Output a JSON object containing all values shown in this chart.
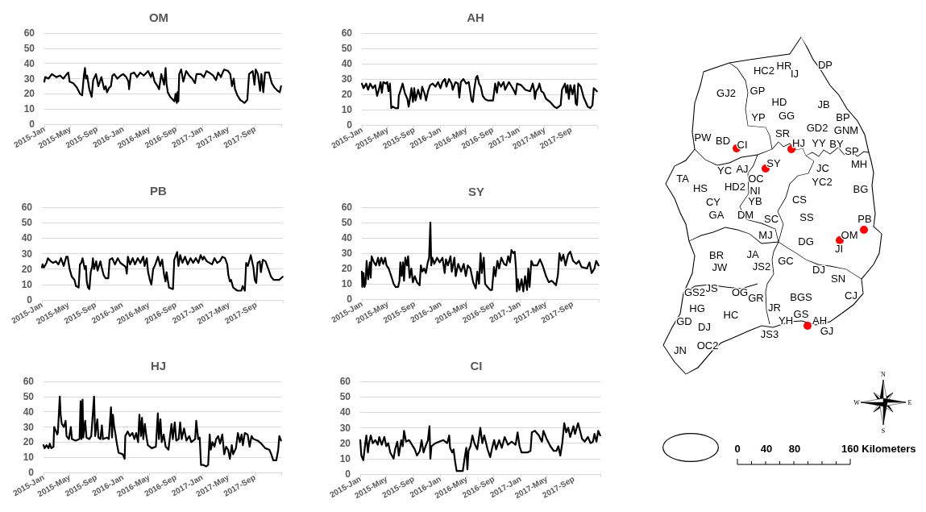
{
  "chart_data": [
    {
      "type": "line",
      "title": "OM",
      "xlim": [
        "2015-01-01",
        "2018-01-01"
      ],
      "xticks": [
        {
          "value": "2015-01-01",
          "label": "2015-Jan"
        },
        {
          "value": "2015-05-01",
          "label": "2015-May"
        },
        {
          "value": "2015-09-01",
          "label": "2015-Sep"
        },
        {
          "value": "2016-01-01",
          "label": "2016-Jan"
        },
        {
          "value": "2016-05-01",
          "label": "2016-May"
        },
        {
          "value": "2016-09-01",
          "label": "2016-Sep"
        },
        {
          "value": "2017-01-01",
          "label": "2017-Jan"
        },
        {
          "value": "2017-05-01",
          "label": "2017-May"
        },
        {
          "value": "2017-09-01",
          "label": "2017-Sep"
        },
        {
          "value": "2018-01-01",
          "label": null
        }
      ],
      "ylim": [
        0,
        60
      ],
      "yticks": [
        0,
        10,
        20,
        30,
        40,
        50,
        60
      ],
      "grid": "y",
      "x": [
        "2015-01-01",
        "2015-01-05",
        "2015-01-20",
        "2015-02-05",
        "2015-02-25",
        "2015-03-15",
        "2015-03-30",
        "2015-04-15",
        "2015-04-22",
        "2015-04-28",
        "2015-05-15",
        "2015-06-01",
        "2015-06-15",
        "2015-06-25",
        "2015-07-03",
        "2015-07-08",
        "2015-07-12",
        "2015-07-18",
        "2015-07-28",
        "2015-08-08",
        "2015-08-15",
        "2015-08-28",
        "2015-09-08",
        "2015-09-22",
        "2015-10-05",
        "2015-10-12",
        "2015-10-18",
        "2015-10-28",
        "2015-11-05",
        "2015-11-12",
        "2015-11-20",
        "2015-12-05",
        "2015-12-20",
        "2016-01-01",
        "2016-01-15",
        "2016-01-25",
        "2016-01-28",
        "2016-02-05",
        "2016-02-20",
        "2016-03-05",
        "2016-03-20",
        "2016-04-05",
        "2016-04-25",
        "2016-05-08",
        "2016-05-15",
        "2016-05-25",
        "2016-06-08",
        "2016-06-15",
        "2016-06-25",
        "2016-07-08",
        "2016-07-15",
        "2016-07-19",
        "2016-07-25",
        "2016-08-05",
        "2016-08-25",
        "2016-08-30",
        "2016-09-05",
        "2016-09-08",
        "2016-09-12",
        "2016-09-16",
        "2016-09-25",
        "2016-10-05",
        "2016-10-18",
        "2016-11-01",
        "2016-11-15",
        "2016-11-28",
        "2016-12-05",
        "2016-12-25",
        "2017-01-08",
        "2017-01-20",
        "2017-02-01",
        "2017-02-20",
        "2017-03-05",
        "2017-03-15",
        "2017-03-28",
        "2017-04-05",
        "2017-04-12",
        "2017-04-30",
        "2017-05-10",
        "2017-05-18",
        "2017-05-26",
        "2017-06-01",
        "2017-06-12",
        "2017-06-25",
        "2017-07-15",
        "2017-07-28",
        "2017-08-05",
        "2017-08-22",
        "2017-08-30",
        "2017-09-05",
        "2017-09-15",
        "2017-09-25",
        "2017-10-01",
        "2017-10-10",
        "2017-10-18",
        "2017-11-05",
        "2017-11-18",
        "2017-12-01",
        "2017-12-15",
        "2017-12-25",
        "2017-12-31"
      ],
      "series": [
        {
          "color": "#000000",
          "values": [
            28,
            31,
            30,
            33,
            31,
            32,
            30,
            33,
            34,
            28,
            27,
            24,
            20,
            19,
            32,
            37,
            30,
            32,
            23,
            18,
            29,
            33,
            25,
            31,
            23,
            25,
            21,
            24,
            25,
            32,
            33,
            30,
            32,
            33,
            31,
            28,
            23,
            33,
            34,
            31,
            34,
            32,
            35,
            31,
            34,
            28,
            25,
            23,
            33,
            26,
            37,
            27,
            21,
            18,
            15,
            20,
            14,
            21,
            15,
            33,
            36,
            28,
            35,
            32,
            30,
            27,
            33,
            33,
            31,
            35,
            34,
            32,
            29,
            34,
            31,
            34,
            36,
            35,
            33,
            25,
            30,
            23,
            19,
            16,
            14,
            16,
            33,
            35,
            26,
            36,
            33,
            22,
            33,
            21,
            34,
            34,
            27,
            24,
            22,
            21,
            25
          ]
        }
      ]
    },
    {
      "type": "line",
      "title": "AH",
      "xlim": [
        "2015-01-01",
        "2018-01-01"
      ],
      "xticks": [
        {
          "value": "2015-01-01",
          "label": "2015-Jan"
        },
        {
          "value": "2015-05-01",
          "label": "2015-May"
        },
        {
          "value": "2015-09-01",
          "label": "2015-Sep"
        },
        {
          "value": "2016-01-01",
          "label": "2016-Jan"
        },
        {
          "value": "2016-05-01",
          "label": "2016-May"
        },
        {
          "value": "2016-09-01",
          "label": "2016-Sep"
        },
        {
          "value": "2017-01-01",
          "label": "2017-Jan"
        },
        {
          "value": "2017-05-01",
          "label": "2017-May"
        },
        {
          "value": "2017-09-01",
          "label": "2017-Sep"
        },
        {
          "value": "2018-01-01",
          "label": null
        }
      ],
      "ylim": [
        0,
        60
      ],
      "yticks": [
        0,
        10,
        20,
        30,
        40,
        50,
        60
      ],
      "grid": "y",
      "x": [
        "2015-01-01",
        "2015-01-09",
        "2015-01-21",
        "2015-01-30",
        "2015-02-09",
        "2015-02-21",
        "2015-03-04",
        "2015-03-13",
        "2015-03-23",
        "2015-03-29",
        "2015-04-04",
        "2015-04-11",
        "2015-04-23",
        "2015-04-29",
        "2015-05-05",
        "2015-05-12",
        "2015-05-18",
        "2015-05-25",
        "2015-06-06",
        "2015-06-19",
        "2015-06-22",
        "2015-07-01",
        "2015-07-10",
        "2015-07-20",
        "2015-08-01",
        "2015-08-07",
        "2015-08-14",
        "2015-08-20",
        "2015-08-27",
        "2015-09-02",
        "2015-09-08",
        "2015-09-20",
        "2015-10-02",
        "2015-10-09",
        "2015-10-21",
        "2015-10-27",
        "2015-11-05",
        "2015-11-15",
        "2015-11-27",
        "2015-12-10",
        "2015-12-22",
        "2016-01-02",
        "2016-01-11",
        "2016-01-23",
        "2016-01-30",
        "2016-02-11",
        "2016-02-23",
        "2016-02-28",
        "2016-03-12",
        "2016-03-24",
        "2016-03-30",
        "2016-04-06",
        "2016-04-18",
        "2016-05-01",
        "2016-05-13",
        "2016-05-26",
        "2016-06-01",
        "2016-06-07",
        "2016-06-16",
        "2016-06-22",
        "2016-06-30",
        "2016-07-08",
        "2016-07-17",
        "2016-07-27",
        "2016-08-09",
        "2016-09-03",
        "2016-09-13",
        "2016-09-21",
        "2016-09-28",
        "2016-10-10",
        "2016-10-22",
        "2016-10-29",
        "2016-11-16",
        "2016-11-29",
        "2016-12-11",
        "2016-12-17",
        "2016-12-24",
        "2017-01-12",
        "2017-01-31",
        "2017-02-23",
        "2017-03-07",
        "2017-03-13",
        "2017-03-17",
        "2017-03-23",
        "2017-04-01",
        "2017-04-07",
        "2017-04-16",
        "2017-04-26",
        "2017-05-08",
        "2017-05-27",
        "2017-06-15",
        "2017-06-27",
        "2017-07-15",
        "2017-07-21",
        "2017-08-04",
        "2017-08-10",
        "2017-08-16",
        "2017-08-22",
        "2017-08-29",
        "2017-09-08",
        "2017-09-17",
        "2017-09-23",
        "2017-09-29",
        "2017-10-05",
        "2017-10-17",
        "2017-10-30",
        "2017-11-18",
        "2017-11-30",
        "2017-12-10",
        "2017-12-16",
        "2017-12-31"
      ],
      "series": [
        {
          "color": "#000000",
          "values": [
            27,
            24,
            27,
            23,
            27,
            24,
            26,
            19,
            24,
            28,
            21,
            28,
            27,
            28,
            22,
            27,
            11,
            12,
            11,
            11,
            19,
            23,
            27,
            21,
            17,
            12,
            18,
            24,
            15,
            24,
            16,
            23,
            17,
            25,
            20,
            16,
            22,
            26,
            27,
            25,
            28,
            24,
            28,
            30,
            25,
            30,
            27,
            23,
            28,
            27,
            18,
            28,
            30,
            27,
            28,
            16,
            15,
            23,
            31,
            32,
            27,
            25,
            19,
            17,
            16,
            16,
            27,
            21,
            28,
            25,
            28,
            23,
            28,
            25,
            22,
            20,
            27,
            26,
            23,
            22,
            27,
            23,
            17,
            22,
            24,
            27,
            22,
            21,
            17,
            15,
            12,
            11,
            13,
            23,
            27,
            21,
            26,
            17,
            26,
            20,
            26,
            14,
            13,
            27,
            25,
            18,
            12,
            11,
            13,
            24,
            22
          ]
        }
      ]
    },
    {
      "type": "line",
      "title": "PB",
      "xlim": [
        "2015-01-01",
        "2018-01-01"
      ],
      "xticks": [
        {
          "value": "2015-01-01",
          "label": "2015-Jan"
        },
        {
          "value": "2015-05-01",
          "label": "2015-May"
        },
        {
          "value": "2015-09-01",
          "label": "2015-Sep"
        },
        {
          "value": "2016-01-01",
          "label": "2016-Jan"
        },
        {
          "value": "2016-05-01",
          "label": "2016-May"
        },
        {
          "value": "2016-09-01",
          "label": "2016-Sep"
        },
        {
          "value": "2017-01-01",
          "label": "2017-Jan"
        },
        {
          "value": "2017-05-01",
          "label": "2017-May"
        },
        {
          "value": "2017-09-01",
          "label": "2017-Sep"
        },
        {
          "value": "2018-01-01",
          "label": null
        }
      ],
      "ylim": [
        0,
        60
      ],
      "yticks": [
        0,
        10,
        20,
        30,
        40,
        50,
        60
      ],
      "grid": "y",
      "x": [
        "2015-01-01",
        "2015-01-04",
        "2015-01-10",
        "2015-01-22",
        "2015-01-28",
        "2015-02-10",
        "2015-02-21",
        "2015-03-05",
        "2015-03-17",
        "2015-03-29",
        "2015-04-10",
        "2015-04-22",
        "2015-04-28",
        "2015-05-07",
        "2015-05-17",
        "2015-05-29",
        "2015-06-05",
        "2015-06-17",
        "2015-06-23",
        "2015-06-29",
        "2015-07-05",
        "2015-07-15",
        "2015-07-20",
        "2015-07-24",
        "2015-07-30",
        "2015-08-05",
        "2015-08-11",
        "2015-08-18",
        "2015-08-21",
        "2015-08-26",
        "2015-09-05",
        "2015-09-11",
        "2015-09-24",
        "2015-09-30",
        "2015-10-09",
        "2015-10-18",
        "2015-10-30",
        "2015-11-05",
        "2015-11-17",
        "2015-11-29",
        "2015-12-12",
        "2015-12-24",
        "2016-01-12",
        "2016-01-18",
        "2016-01-22",
        "2016-01-27",
        "2016-02-06",
        "2016-02-18",
        "2016-02-28",
        "2016-03-12",
        "2016-03-24",
        "2016-04-06",
        "2016-04-12",
        "2016-04-22",
        "2016-04-28",
        "2016-05-06",
        "2016-05-13",
        "2016-05-21",
        "2016-05-31",
        "2016-06-12",
        "2016-06-22",
        "2016-07-01",
        "2016-07-09",
        "2016-07-16",
        "2016-07-21",
        "2016-08-01",
        "2016-08-19",
        "2016-08-25",
        "2016-09-07",
        "2016-09-13",
        "2016-09-21",
        "2016-10-01",
        "2016-10-13",
        "2016-10-25",
        "2016-11-07",
        "2016-11-19",
        "2016-12-01",
        "2016-12-13",
        "2016-12-23",
        "2017-01-01",
        "2017-01-07",
        "2017-01-20",
        "2017-02-13",
        "2017-02-24",
        "2017-03-08",
        "2017-03-20",
        "2017-04-01",
        "2017-04-13",
        "2017-04-23",
        "2017-04-28",
        "2017-05-05",
        "2017-05-10",
        "2017-05-20",
        "2017-06-08",
        "2017-06-26",
        "2017-07-02",
        "2017-07-12",
        "2017-07-18",
        "2017-07-26",
        "2017-08-08",
        "2017-08-20",
        "2017-08-26",
        "2017-09-02",
        "2017-09-08",
        "2017-09-18",
        "2017-09-23",
        "2017-10-02",
        "2017-10-14",
        "2017-10-27",
        "2017-11-08",
        "2017-11-20",
        "2017-12-15",
        "2017-12-31"
      ],
      "series": [
        {
          "color": "#000000",
          "values": [
            21,
            23,
            21,
            24,
            27,
            25,
            24,
            25,
            23,
            27,
            22,
            28,
            28,
            20,
            15,
            13,
            9,
            8,
            23,
            24,
            27,
            20,
            22,
            12,
            8,
            7,
            18,
            22,
            27,
            20,
            25,
            19,
            25,
            21,
            16,
            14,
            14,
            26,
            27,
            23,
            27,
            24,
            22,
            21,
            17,
            28,
            23,
            27,
            23,
            27,
            24,
            28,
            22,
            27,
            18,
            13,
            10,
            20,
            23,
            28,
            22,
            26,
            17,
            12,
            18,
            8,
            7,
            26,
            31,
            22,
            29,
            24,
            28,
            23,
            27,
            24,
            27,
            24,
            29,
            26,
            28,
            25,
            23,
            27,
            24,
            25,
            28,
            27,
            23,
            16,
            12,
            13,
            8,
            6,
            6,
            9,
            6,
            24,
            22,
            29,
            21,
            13,
            11,
            24,
            25,
            18,
            26,
            25,
            20,
            15,
            13,
            13,
            15
          ]
        }
      ]
    },
    {
      "type": "line",
      "title": "SY",
      "xlim": [
        "2015-01-01",
        "2018-01-01"
      ],
      "xticks": [
        {
          "value": "2015-01-01",
          "label": "2015-Jan"
        },
        {
          "value": "2015-05-01",
          "label": "2015-May"
        },
        {
          "value": "2015-09-01",
          "label": "2015-Sep"
        },
        {
          "value": "2016-01-01",
          "label": "2016-Jan"
        },
        {
          "value": "2016-05-01",
          "label": "2016-May"
        },
        {
          "value": "2016-09-01",
          "label": "2016-Sep"
        },
        {
          "value": "2017-01-01",
          "label": "2017-Jan"
        },
        {
          "value": "2017-05-01",
          "label": "2017-May"
        },
        {
          "value": "2017-09-01",
          "label": "2017-Sep"
        },
        {
          "value": "2018-01-01",
          "label": null
        }
      ],
      "ylim": [
        0,
        60
      ],
      "yticks": [
        0,
        10,
        20,
        30,
        40,
        50,
        60
      ],
      "grid": "y",
      "x": [
        "2015-01-01",
        "2015-01-03",
        "2015-01-09",
        "2015-01-13",
        "2015-01-18",
        "2015-01-23",
        "2015-01-30",
        "2015-02-07",
        "2015-02-11",
        "2015-02-15",
        "2015-02-26",
        "2015-03-07",
        "2015-03-17",
        "2015-03-23",
        "2015-04-01",
        "2015-04-10",
        "2015-04-19",
        "2015-04-25",
        "2015-05-05",
        "2015-05-17",
        "2015-05-28",
        "2015-06-06",
        "2015-06-18",
        "2015-06-24",
        "2015-06-28",
        "2015-07-04",
        "2015-07-10",
        "2015-07-15",
        "2015-07-21",
        "2015-07-29",
        "2015-08-03",
        "2015-08-10",
        "2015-08-18",
        "2015-08-25",
        "2015-09-03",
        "2015-09-13",
        "2015-09-25",
        "2015-10-01",
        "2015-10-08",
        "2015-10-16",
        "2015-10-24",
        "2015-11-02",
        "2015-11-08",
        "2015-11-14",
        "2015-11-18",
        "2015-11-23",
        "2015-12-02",
        "2015-12-15",
        "2015-12-27",
        "2016-01-09",
        "2016-01-19",
        "2016-01-25",
        "2016-02-03",
        "2016-02-15",
        "2016-02-21",
        "2016-03-04",
        "2016-03-10",
        "2016-03-22",
        "2016-04-04",
        "2016-04-16",
        "2016-04-26",
        "2016-05-05",
        "2016-05-17",
        "2016-05-30",
        "2016-06-11",
        "2016-06-18",
        "2016-06-26",
        "2016-07-03",
        "2016-07-09",
        "2016-07-18",
        "2016-07-24",
        "2016-08-04",
        "2016-08-16",
        "2016-08-25",
        "2016-09-03",
        "2016-09-10",
        "2016-09-19",
        "2016-09-27",
        "2016-10-07",
        "2016-10-20",
        "2016-10-30",
        "2016-11-08",
        "2016-11-16",
        "2016-11-23",
        "2016-12-02",
        "2016-12-08",
        "2016-12-14",
        "2016-12-18",
        "2016-12-23",
        "2016-12-30",
        "2017-01-09",
        "2017-01-17",
        "2017-01-25",
        "2017-02-03",
        "2017-02-09",
        "2017-02-15",
        "2017-02-23",
        "2017-03-04",
        "2017-03-22",
        "2017-04-04",
        "2017-04-16",
        "2017-05-02",
        "2017-05-15",
        "2017-05-27",
        "2017-06-05",
        "2017-06-17",
        "2017-06-26",
        "2017-07-03",
        "2017-07-12",
        "2017-07-21",
        "2017-07-31",
        "2017-08-12",
        "2017-08-22",
        "2017-09-04",
        "2017-09-19",
        "2017-10-01",
        "2017-10-13",
        "2017-11-07",
        "2017-11-19",
        "2017-11-29",
        "2017-12-12",
        "2017-12-20",
        "2017-12-31"
      ],
      "series": [
        {
          "color": "#000000",
          "values": [
            18,
            8,
            17,
            8,
            10,
            25,
            13,
            24,
            14,
            28,
            24,
            22,
            27,
            22,
            27,
            23,
            27,
            22,
            20,
            15,
            10,
            8,
            8,
            12,
            24,
            15,
            24,
            12,
            27,
            22,
            28,
            14,
            20,
            11,
            15,
            11,
            9,
            22,
            18,
            20,
            17,
            24,
            27,
            50,
            22,
            27,
            23,
            27,
            24,
            27,
            17,
            26,
            22,
            28,
            18,
            27,
            15,
            23,
            18,
            23,
            15,
            22,
            20,
            11,
            7,
            18,
            10,
            30,
            17,
            27,
            10,
            8,
            6,
            6,
            21,
            15,
            25,
            20,
            27,
            23,
            22,
            28,
            24,
            32,
            30,
            31,
            20,
            5,
            13,
            6,
            13,
            5,
            15,
            6,
            20,
            8,
            25,
            22,
            22,
            26,
            22,
            15,
            11,
            12,
            11,
            9,
            16,
            30,
            25,
            29,
            22,
            29,
            31,
            25,
            23,
            25,
            21,
            20,
            24,
            17,
            20,
            25,
            22
          ]
        }
      ]
    },
    {
      "type": "line",
      "title": "HJ",
      "xlim": [
        "2015-01-01",
        "2018-01-01"
      ],
      "xticks": [
        {
          "value": "2015-01-01",
          "label": "2015-Jan"
        },
        {
          "value": "2015-05-01",
          "label": "2015-May"
        },
        {
          "value": "2015-09-01",
          "label": "2015-Sep"
        },
        {
          "value": "2016-01-01",
          "label": "2016-Jan"
        },
        {
          "value": "2016-05-01",
          "label": "2016-May"
        },
        {
          "value": "2016-09-01",
          "label": "2016-Sep"
        },
        {
          "value": "2017-01-01",
          "label": "2017-Jan"
        },
        {
          "value": "2017-05-01",
          "label": "2017-May"
        },
        {
          "value": "2017-09-01",
          "label": "2017-Sep"
        },
        {
          "value": "2018-01-01",
          "label": null
        }
      ],
      "ylim": [
        0,
        60
      ],
      "yticks": [
        0,
        10,
        20,
        30,
        40,
        50,
        60
      ],
      "grid": "y",
      "x": [
        "2015-01-01",
        "2015-01-06",
        "2015-01-15",
        "2015-01-24",
        "2015-01-30",
        "2015-02-06",
        "2015-02-16",
        "2015-02-19",
        "2015-02-28",
        "2015-03-05",
        "2015-03-08",
        "2015-03-17",
        "2015-03-21",
        "2015-03-26",
        "2015-04-05",
        "2015-04-13",
        "2015-04-17",
        "2015-04-28",
        "2015-05-07",
        "2015-05-12",
        "2015-05-29",
        "2015-06-16",
        "2015-06-21",
        "2015-06-25",
        "2015-06-30",
        "2015-07-03",
        "2015-07-12",
        "2015-07-18",
        "2015-07-31",
        "2015-08-09",
        "2015-08-22",
        "2015-08-27",
        "2015-09-06",
        "2015-09-11",
        "2015-09-20",
        "2015-09-27",
        "2015-10-02",
        "2015-10-20",
        "2015-10-29",
        "2015-11-08",
        "2015-11-13",
        "2015-11-17",
        "2015-11-22",
        "2015-11-29",
        "2015-12-04",
        "2015-12-13",
        "2016-01-01",
        "2016-01-10",
        "2016-01-13",
        "2016-01-24",
        "2016-02-03",
        "2016-02-15",
        "2016-02-24",
        "2016-03-03",
        "2016-03-12",
        "2016-03-18",
        "2016-03-25",
        "2016-03-30",
        "2016-04-05",
        "2016-04-12",
        "2016-04-19",
        "2016-04-26",
        "2016-05-14",
        "2016-06-02",
        "2016-06-11",
        "2016-06-16",
        "2016-06-23",
        "2016-06-29",
        "2016-07-08",
        "2016-07-17",
        "2016-07-30",
        "2016-08-13",
        "2016-08-19",
        "2016-08-28",
        "2016-09-04",
        "2016-09-15",
        "2016-09-22",
        "2016-09-29",
        "2016-10-10",
        "2016-10-21",
        "2016-11-03",
        "2016-11-12",
        "2016-11-30",
        "2016-12-05",
        "2016-12-14",
        "2016-12-21",
        "2016-12-27",
        "2017-01-05",
        "2017-01-20",
        "2017-01-29",
        "2017-02-05",
        "2017-02-10",
        "2017-02-18",
        "2017-02-27",
        "2017-03-07",
        "2017-03-16",
        "2017-03-25",
        "2017-04-04",
        "2017-04-13",
        "2017-04-22",
        "2017-05-01",
        "2017-05-09",
        "2017-05-18",
        "2017-05-24",
        "2017-06-06",
        "2017-06-15",
        "2017-06-24",
        "2017-07-02",
        "2017-07-08",
        "2017-07-17",
        "2017-07-30",
        "2017-08-08",
        "2017-08-17",
        "2017-08-26",
        "2017-09-14",
        "2017-10-01",
        "2017-10-19",
        "2017-11-07",
        "2017-11-16",
        "2017-11-25",
        "2017-12-09",
        "2017-12-18",
        "2017-12-23",
        "2017-12-31"
      ],
      "series": [
        {
          "color": "#000000",
          "values": [
            18,
            16,
            18,
            16,
            19,
            16,
            17,
            30,
            27,
            25,
            26,
            50,
            38,
            32,
            30,
            34,
            24,
            22,
            30,
            22,
            21,
            22,
            47,
            22,
            48,
            23,
            34,
            23,
            22,
            24,
            50,
            24,
            35,
            23,
            22,
            31,
            22,
            23,
            22,
            43,
            23,
            38,
            31,
            25,
            20,
            13,
            12,
            9,
            24,
            27,
            24,
            26,
            22,
            26,
            20,
            38,
            24,
            36,
            22,
            32,
            24,
            18,
            16,
            17,
            39,
            22,
            35,
            20,
            25,
            17,
            15,
            32,
            22,
            33,
            21,
            22,
            33,
            22,
            29,
            21,
            24,
            20,
            22,
            34,
            22,
            23,
            5,
            5,
            4,
            5,
            25,
            15,
            20,
            17,
            22,
            24,
            19,
            25,
            12,
            17,
            15,
            9,
            18,
            12,
            16,
            26,
            20,
            25,
            18,
            26,
            25,
            17,
            24,
            22,
            21,
            19,
            16,
            15,
            12,
            8,
            8,
            15,
            24,
            21
          ]
        }
      ]
    },
    {
      "type": "line",
      "title": "CI",
      "xlim": [
        "2015-01-01",
        "2018-01-01"
      ],
      "xticks": [
        {
          "value": "2015-01-01",
          "label": "2015-Jan"
        },
        {
          "value": "2015-05-01",
          "label": "2015-May"
        },
        {
          "value": "2015-09-01",
          "label": "2015-Sep"
        },
        {
          "value": "2016-01-01",
          "label": "2016-Jan"
        },
        {
          "value": "2016-05-01",
          "label": "2016-May"
        },
        {
          "value": "2016-09-01",
          "label": "2016-Sep"
        },
        {
          "value": "2017-01-01",
          "label": "2017-Jan"
        },
        {
          "value": "2017-05-01",
          "label": "2017-May"
        },
        {
          "value": "2017-09-01",
          "label": "2017-Sep"
        },
        {
          "value": "2018-01-01",
          "label": null
        }
      ],
      "ylim": [
        0,
        60
      ],
      "yticks": [
        0,
        10,
        20,
        30,
        40,
        50,
        60
      ],
      "grid": "y",
      "x": [
        "2015-01-01",
        "2015-01-06",
        "2015-01-15",
        "2015-01-24",
        "2015-01-29",
        "2015-02-05",
        "2015-02-10",
        "2015-02-18",
        "2015-02-27",
        "2015-03-11",
        "2015-03-22",
        "2015-03-29",
        "2015-04-09",
        "2015-04-21",
        "2015-04-30",
        "2015-05-09",
        "2015-05-18",
        "2015-06-02",
        "2015-06-09",
        "2015-06-19",
        "2015-06-26",
        "2015-07-07",
        "2015-07-14",
        "2015-07-20",
        "2015-07-29",
        "2015-08-12",
        "2015-08-25",
        "2015-09-07",
        "2015-09-17",
        "2015-09-30",
        "2015-10-08",
        "2015-10-17",
        "2015-10-26",
        "2015-11-06",
        "2015-11-13",
        "2015-11-17",
        "2015-11-22",
        "2015-12-10",
        "2015-12-28",
        "2016-01-15",
        "2016-02-02",
        "2016-02-11",
        "2016-02-15",
        "2016-02-25",
        "2016-03-02",
        "2016-03-09",
        "2016-03-16",
        "2016-03-31",
        "2016-04-13",
        "2016-04-22",
        "2016-04-29",
        "2016-05-04",
        "2016-05-09",
        "2016-05-18",
        "2016-05-27",
        "2016-06-05",
        "2016-06-18",
        "2016-07-02",
        "2016-07-11",
        "2016-07-20",
        "2016-08-04",
        "2016-08-16",
        "2016-08-25",
        "2016-09-03",
        "2016-09-12",
        "2016-09-26",
        "2016-10-08",
        "2016-10-21",
        "2016-11-05",
        "2016-11-22",
        "2016-12-10",
        "2016-12-19",
        "2016-12-28",
        "2017-01-06",
        "2017-02-02",
        "2017-02-16",
        "2017-02-22",
        "2017-03-08",
        "2017-03-26",
        "2017-04-09",
        "2017-04-16",
        "2017-04-30",
        "2017-05-18",
        "2017-06-02",
        "2017-06-14",
        "2017-06-23",
        "2017-07-02",
        "2017-07-11",
        "2017-07-20",
        "2017-07-29",
        "2017-08-07",
        "2017-08-16",
        "2017-08-31",
        "2017-09-07",
        "2017-09-21",
        "2017-09-30",
        "2017-10-09",
        "2017-10-21",
        "2017-11-05",
        "2017-11-17",
        "2017-11-28",
        "2017-12-05",
        "2017-12-14",
        "2017-12-22",
        "2017-12-31"
      ],
      "series": [
        {
          "color": "#000000",
          "values": [
            22,
            12,
            9,
            20,
            25,
            14,
            20,
            25,
            20,
            22,
            19,
            24,
            19,
            24,
            18,
            20,
            14,
            10,
            16,
            21,
            12,
            22,
            18,
            28,
            21,
            22,
            19,
            16,
            12,
            15,
            22,
            14,
            18,
            22,
            31,
            10,
            18,
            20,
            21,
            22,
            20,
            25,
            17,
            14,
            16,
            8,
            2,
            2,
            2,
            11,
            17,
            3,
            15,
            18,
            25,
            20,
            16,
            30,
            20,
            25,
            16,
            11,
            17,
            22,
            16,
            22,
            17,
            24,
            19,
            21,
            19,
            27,
            18,
            14,
            14,
            15,
            27,
            28,
            25,
            21,
            28,
            23,
            18,
            15,
            15,
            18,
            12,
            20,
            33,
            27,
            30,
            24,
            31,
            26,
            33,
            28,
            23,
            21,
            24,
            20,
            21,
            26,
            21,
            28,
            25
          ]
        }
      ]
    },
    {
      "type": "other",
      "annotations": [
        "HR",
        "DP",
        "HC2",
        "IJ",
        "GJ2",
        "GP",
        "HD",
        "JB",
        "GG",
        "YP",
        "BP",
        "GD2",
        "GNM",
        "SR",
        "PW",
        "BD",
        "HJ",
        "YY",
        "BY",
        "CI",
        "SP",
        "MH",
        "SY",
        "JC",
        "AJ",
        "YC",
        "TA",
        "OC",
        "YC2",
        "HD2",
        "HS",
        "BG",
        "NI",
        "CS",
        "YB",
        "CY",
        "GA",
        "DM",
        "SS",
        "SC",
        "PB",
        "MJ",
        "OM",
        "DG",
        "JI",
        "JA",
        "BR",
        "GC",
        "JS2",
        "JW",
        "DJ",
        "SN",
        "JS",
        "GS2",
        "OG",
        "CJ",
        "BGS",
        "GR",
        "JR",
        "HG",
        "GS",
        "HC",
        "AH",
        "YH",
        "GD",
        "DJ",
        "JS3",
        "GJ",
        "OC2",
        "JN",
        "N",
        "W",
        "E",
        "S",
        "0",
        "40",
        "80",
        "160 Kilometers"
      ]
    }
  ]
}
